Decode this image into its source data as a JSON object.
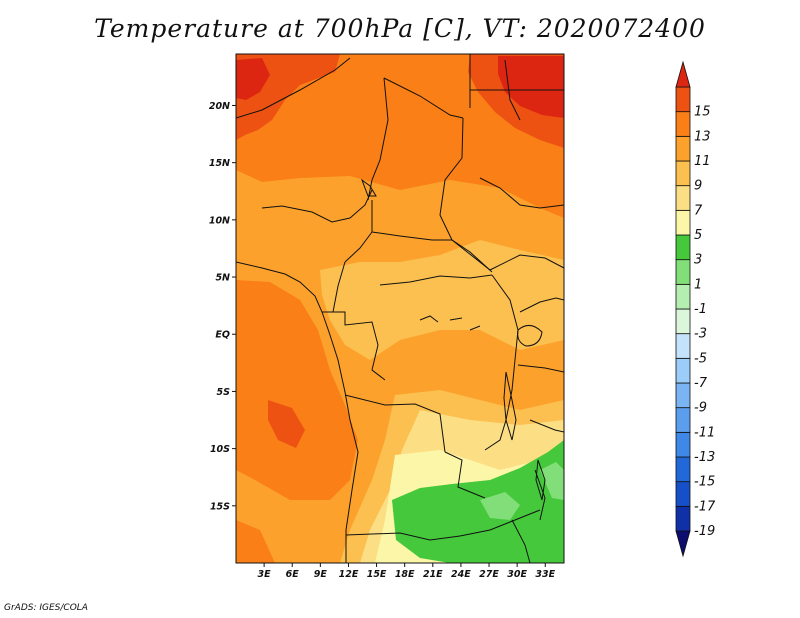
{
  "title": "Temperature at 700hPa [C], VT: 2020072400",
  "credit": "GrADS: IGES/COLA",
  "map": {
    "lon_range": [
      0,
      35
    ],
    "lat_range": [
      -20,
      24.5
    ],
    "lat_ticks": [
      {
        "value": 20,
        "label": "20N"
      },
      {
        "value": 15,
        "label": "15N"
      },
      {
        "value": 10,
        "label": "10N"
      },
      {
        "value": 5,
        "label": "5N"
      },
      {
        "value": 0,
        "label": "EQ"
      },
      {
        "value": -5,
        "label": "5S"
      },
      {
        "value": -10,
        "label": "10S"
      },
      {
        "value": -15,
        "label": "15S"
      }
    ],
    "lon_ticks": [
      {
        "value": 3,
        "label": "3E"
      },
      {
        "value": 6,
        "label": "6E"
      },
      {
        "value": 9,
        "label": "9E"
      },
      {
        "value": 12,
        "label": "12E"
      },
      {
        "value": 15,
        "label": "15E"
      },
      {
        "value": 18,
        "label": "18E"
      },
      {
        "value": 21,
        "label": "21E"
      },
      {
        "value": 24,
        "label": "24E"
      },
      {
        "value": 27,
        "label": "27E"
      },
      {
        "value": 30,
        "label": "30E"
      },
      {
        "value": 33,
        "label": "33E"
      }
    ]
  },
  "colorbar": {
    "colors": [
      "#0d0d70",
      "#1030a8",
      "#1650c8",
      "#2268d8",
      "#3f88e8",
      "#5c9eee",
      "#7bb4f2",
      "#9cccf8",
      "#c4e2fc",
      "#dcf6dc",
      "#b4eeb0",
      "#82de78",
      "#46c83c",
      "#fcf6a8",
      "#fcde84",
      "#fcc050",
      "#fca22c",
      "#fa7f16",
      "#ee5212",
      "#dc2612"
    ],
    "labels": [
      "-19",
      "-17",
      "-15",
      "-13",
      "-11",
      "-9",
      "-7",
      "-5",
      "-3",
      "-1",
      "1",
      "3",
      "5",
      "7",
      "9",
      "11",
      "13",
      "15"
    ],
    "range": [
      -21,
      17
    ]
  }
}
